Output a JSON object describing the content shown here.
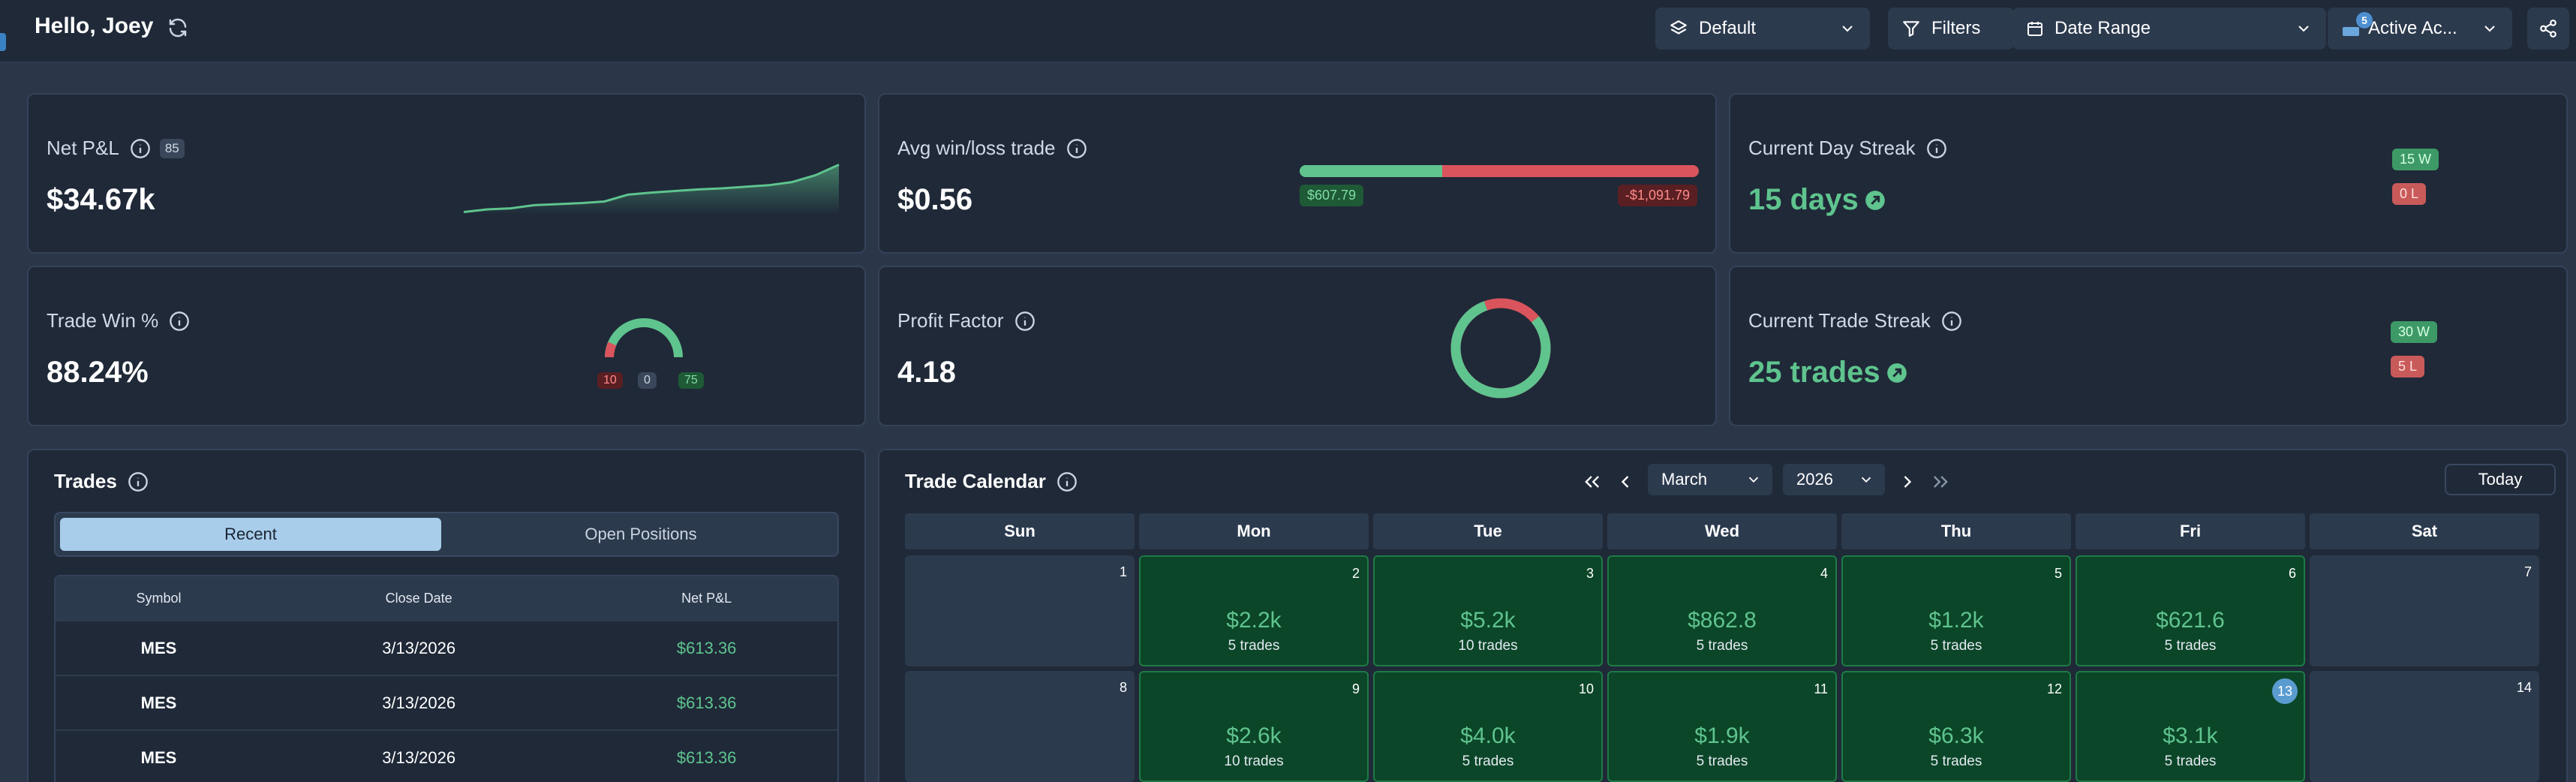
{
  "header": {
    "greeting": "Hello, Joey",
    "layout_select": "Default",
    "filters_label": "Filters",
    "date_range_label": "Date Range",
    "account_label": "Active Ac...",
    "account_badge": "5"
  },
  "stats": {
    "net_pnl": {
      "title": "Net P&L",
      "count": "85",
      "value": "$34.67k",
      "sparkline": [
        0.05,
        0.1,
        0.12,
        0.18,
        0.2,
        0.22,
        0.25,
        0.38,
        0.42,
        0.45,
        0.48,
        0.5,
        0.53,
        0.56,
        0.62,
        0.75,
        0.95
      ]
    },
    "avg_win_loss": {
      "title": "Avg win/loss trade",
      "value": "$0.56",
      "win_label": "$607.79",
      "loss_label": "-$1,091.79",
      "win_amount": 607.79,
      "loss_amount": 1091.79
    },
    "day_streak": {
      "title": "Current Day Streak",
      "value": "15 days",
      "wins": "15 W",
      "losses": "0 L"
    },
    "trade_win": {
      "title": "Trade Win %",
      "value": "88.24%",
      "losses": "10",
      "breakeven": "0",
      "wins": "75"
    },
    "profit_factor": {
      "title": "Profit Factor",
      "value": "4.18",
      "win_fraction": 0.807
    },
    "trade_streak": {
      "title": "Current Trade Streak",
      "value": "25 trades",
      "wins": "30 W",
      "losses": "5 L"
    }
  },
  "trades": {
    "title": "Trades",
    "tab_recent": "Recent",
    "tab_open": "Open Positions",
    "columns": [
      "Symbol",
      "Close Date",
      "Net P&L"
    ],
    "rows": [
      {
        "symbol": "MES",
        "date": "3/13/2026",
        "pnl": "$613.36"
      },
      {
        "symbol": "MES",
        "date": "3/13/2026",
        "pnl": "$613.36"
      },
      {
        "symbol": "MES",
        "date": "3/13/2026",
        "pnl": "$613.36"
      }
    ]
  },
  "calendar": {
    "title": "Trade Calendar",
    "month": "March",
    "year": "2026",
    "today_label": "Today",
    "weekdays": [
      "Sun",
      "Mon",
      "Tue",
      "Wed",
      "Thu",
      "Fri",
      "Sat"
    ],
    "weeks": [
      [
        {
          "day": "1"
        },
        {
          "day": "2",
          "amount": "$2.2k",
          "trades": "5 trades"
        },
        {
          "day": "3",
          "amount": "$5.2k",
          "trades": "10 trades"
        },
        {
          "day": "4",
          "amount": "$862.8",
          "trades": "5 trades"
        },
        {
          "day": "5",
          "amount": "$1.2k",
          "trades": "5 trades"
        },
        {
          "day": "6",
          "amount": "$621.6",
          "trades": "5 trades"
        },
        {
          "day": "7"
        }
      ],
      [
        {
          "day": "8"
        },
        {
          "day": "9",
          "amount": "$2.6k",
          "trades": "10 trades"
        },
        {
          "day": "10",
          "amount": "$4.0k",
          "trades": "5 trades"
        },
        {
          "day": "11",
          "amount": "$1.9k",
          "trades": "5 trades"
        },
        {
          "day": "12",
          "amount": "$6.3k",
          "trades": "5 trades"
        },
        {
          "day": "13",
          "amount": "$3.1k",
          "trades": "5 trades",
          "today": true
        },
        {
          "day": "14"
        }
      ]
    ]
  },
  "colors": {
    "win": "#5fc48e",
    "loss": "#d9545c",
    "accent": "#5a9ccf"
  }
}
